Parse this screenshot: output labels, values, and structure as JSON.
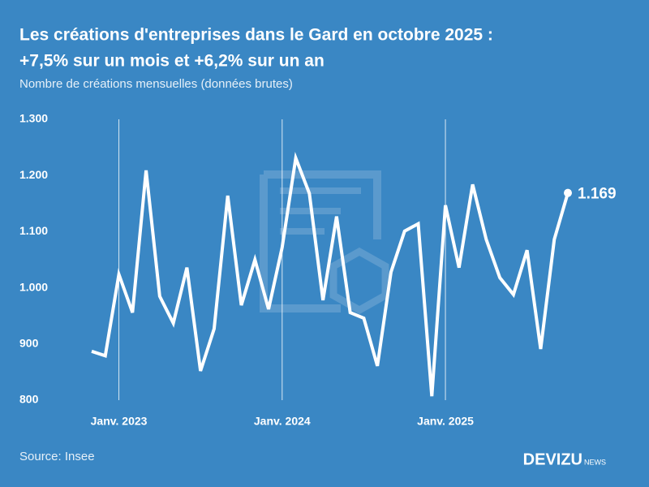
{
  "chart_data": {
    "type": "line",
    "title": "Les créations d'entreprises dans le Gard en octobre 2025 :",
    "title_line2": "+7,5% sur un mois et +6,2% sur un an",
    "subtitle": "Nombre de créations mensuelles (données brutes)",
    "source": "Source: Insee",
    "brand": "DEVIZU",
    "brand_suffix": "NEWS",
    "categories": [
      null,
      null,
      "Janv. 2023",
      null,
      null,
      null,
      null,
      null,
      null,
      null,
      null,
      null,
      null,
      null,
      "Janv. 2024",
      null,
      null,
      null,
      null,
      null,
      null,
      null,
      null,
      null,
      null,
      null,
      "Janv. 2025",
      null,
      null,
      null,
      null,
      null,
      null,
      null,
      null,
      null
    ],
    "values": [
      887,
      879,
      1024,
      956,
      1209,
      985,
      937,
      1036,
      852,
      927,
      1164,
      969,
      1050,
      962,
      1072,
      1231,
      1168,
      978,
      1127,
      956,
      946,
      861,
      1028,
      1101,
      1114,
      807,
      1147,
      1036,
      1184,
      1086,
      1018,
      988,
      1067,
      891,
      1086,
      1169
    ],
    "value_labels": [
      null,
      null,
      null,
      null,
      null,
      null,
      null,
      null,
      null,
      null,
      null,
      null,
      null,
      null,
      null,
      null,
      null,
      null,
      null,
      null,
      null,
      null,
      null,
      null,
      null,
      null,
      null,
      null,
      null,
      null,
      null,
      null,
      null,
      null,
      null,
      "1.169"
    ],
    "color": "#ffffff",
    "ylim": [
      800,
      1300
    ],
    "yticks": [
      800,
      900,
      {
        "value": 1000,
        "label": "1.000"
      },
      {
        "value": 1100,
        "label": "1.100"
      },
      {
        "value": 1200,
        "label": "1.200"
      },
      {
        "value": 1300,
        "label": "1.300"
      }
    ],
    "x_grid": true
  }
}
